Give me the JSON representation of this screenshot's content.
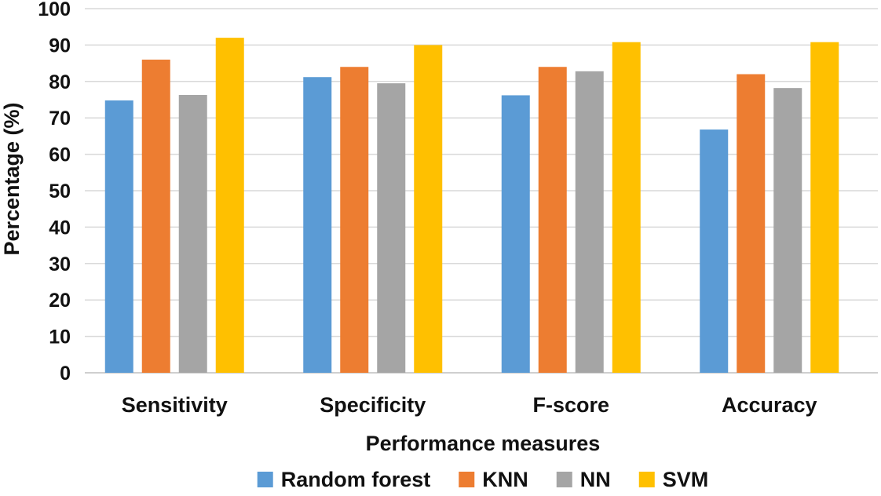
{
  "chart_data": {
    "type": "bar",
    "title": "",
    "xlabel": "Performance measures",
    "ylabel": "Percentage (%)",
    "ylim": [
      0,
      100
    ],
    "yticks": [
      0,
      10,
      20,
      30,
      40,
      50,
      60,
      70,
      80,
      90,
      100
    ],
    "grid": "horizontal",
    "legend": "bottom",
    "categories": [
      "Sensitivity",
      "Specificity",
      "F-score",
      "Accuracy"
    ],
    "series": [
      {
        "name": "Random forest",
        "color": "#5b9bd5",
        "values": [
          74.8,
          81.2,
          76.2,
          66.8
        ]
      },
      {
        "name": "KNN",
        "color": "#ed7d31",
        "values": [
          86.0,
          84.0,
          84.0,
          82.0
        ]
      },
      {
        "name": "NN",
        "color": "#a5a5a5",
        "values": [
          76.3,
          79.5,
          82.8,
          78.2
        ]
      },
      {
        "name": "SVM",
        "color": "#ffc000",
        "values": [
          92.0,
          90.0,
          90.8,
          90.8
        ]
      }
    ]
  }
}
